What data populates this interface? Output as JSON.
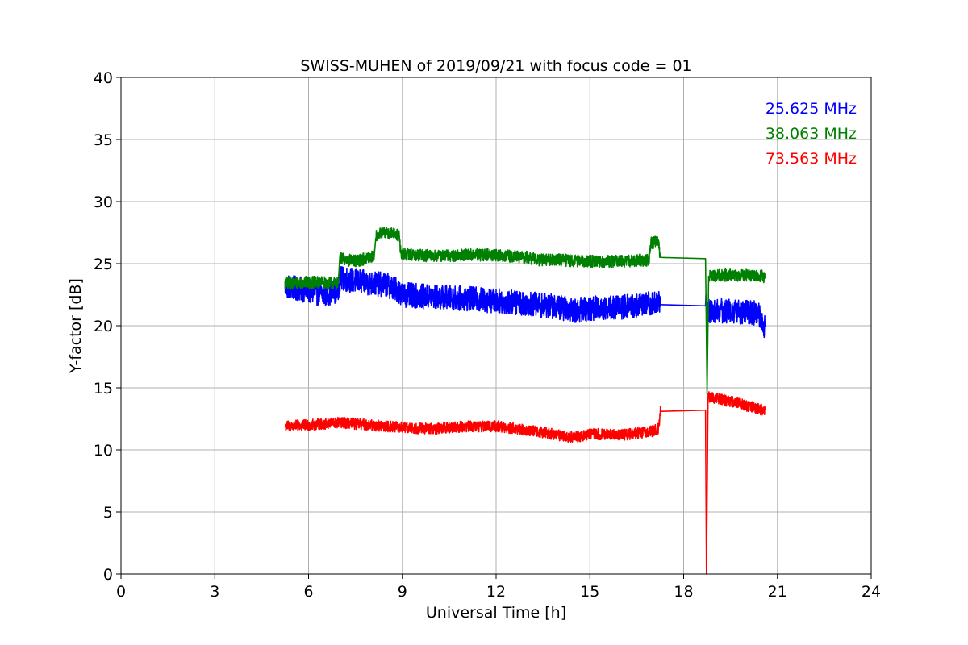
{
  "chart_data": {
    "type": "line",
    "title": "SWISS-MUHEN of 2019/09/21 with focus code = 01",
    "xlabel": "Universal Time [h]",
    "ylabel": "Y-factor [dB]",
    "xlim": [
      0,
      24
    ],
    "ylim": [
      0,
      40
    ],
    "xticks": [
      0,
      3,
      6,
      9,
      12,
      15,
      18,
      21,
      24
    ],
    "yticks": [
      0,
      5,
      10,
      15,
      20,
      25,
      30,
      35,
      40
    ],
    "grid": true,
    "legend_position": "top-right",
    "series": [
      {
        "name": "25.625 MHz",
        "color": "#0000ff",
        "noise": 1.0,
        "points": [
          [
            5.25,
            23.2
          ],
          [
            6.0,
            22.8
          ],
          [
            6.5,
            22.5
          ],
          [
            6.95,
            22.9
          ],
          [
            7.0,
            23.8
          ],
          [
            7.5,
            23.6
          ],
          [
            8.0,
            23.4
          ],
          [
            8.5,
            23.3
          ],
          [
            8.9,
            22.8
          ],
          [
            9.0,
            22.5
          ],
          [
            10.0,
            22.3
          ],
          [
            11.0,
            22.2
          ],
          [
            12.0,
            22.0
          ],
          [
            13.0,
            21.8
          ],
          [
            14.0,
            21.5
          ],
          [
            14.5,
            21.2
          ],
          [
            15.0,
            21.4
          ],
          [
            16.0,
            21.5
          ],
          [
            17.0,
            21.8
          ],
          [
            17.2,
            22.0
          ],
          [
            17.25,
            21.7
          ],
          [
            18.7,
            21.6
          ],
          [
            18.75,
            21.2
          ],
          [
            19.5,
            21.2
          ],
          [
            20.4,
            21.0
          ],
          [
            20.6,
            19.9
          ]
        ]
      },
      {
        "name": "38.063 MHz",
        "color": "#008000",
        "noise": 0.5,
        "points": [
          [
            5.25,
            23.4
          ],
          [
            6.0,
            23.5
          ],
          [
            6.95,
            23.4
          ],
          [
            7.0,
            25.4
          ],
          [
            7.5,
            25.2
          ],
          [
            8.1,
            25.6
          ],
          [
            8.15,
            27.3
          ],
          [
            8.5,
            27.5
          ],
          [
            8.9,
            27.3
          ],
          [
            8.95,
            25.8
          ],
          [
            10.0,
            25.6
          ],
          [
            11.0,
            25.7
          ],
          [
            12.0,
            25.7
          ],
          [
            13.0,
            25.5
          ],
          [
            13.4,
            25.3
          ],
          [
            14.0,
            25.3
          ],
          [
            15.0,
            25.2
          ],
          [
            16.0,
            25.2
          ],
          [
            16.9,
            25.3
          ],
          [
            16.95,
            26.7
          ],
          [
            17.2,
            26.7
          ],
          [
            17.25,
            25.5
          ],
          [
            18.7,
            25.4
          ],
          [
            18.75,
            14.5
          ],
          [
            18.8,
            24.0
          ],
          [
            19.5,
            24.1
          ],
          [
            20.5,
            24.0
          ],
          [
            20.6,
            23.8
          ]
        ]
      },
      {
        "name": "73.563 MHz",
        "color": "#ff0000",
        "noise": 0.45,
        "points": [
          [
            5.25,
            11.9
          ],
          [
            6.0,
            12.0
          ],
          [
            7.0,
            12.2
          ],
          [
            8.0,
            12.0
          ],
          [
            9.0,
            11.8
          ],
          [
            10.0,
            11.7
          ],
          [
            11.0,
            11.9
          ],
          [
            12.0,
            11.9
          ],
          [
            13.0,
            11.6
          ],
          [
            14.0,
            11.2
          ],
          [
            14.5,
            11.0
          ],
          [
            15.0,
            11.3
          ],
          [
            16.0,
            11.2
          ],
          [
            17.0,
            11.5
          ],
          [
            17.2,
            11.7
          ],
          [
            17.25,
            13.1
          ],
          [
            18.7,
            13.2
          ],
          [
            18.73,
            0.0
          ],
          [
            18.78,
            14.3
          ],
          [
            19.5,
            13.9
          ],
          [
            20.4,
            13.3
          ],
          [
            20.6,
            13.2
          ]
        ]
      }
    ]
  }
}
